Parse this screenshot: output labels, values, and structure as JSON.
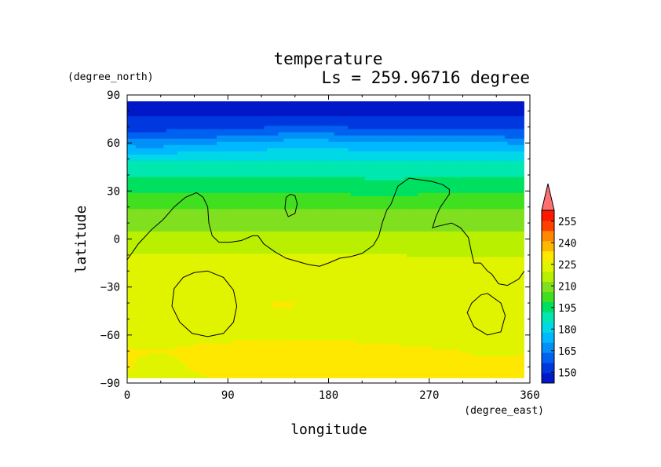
{
  "chart_data": {
    "type": "heatmap",
    "title": "temperature",
    "subtitle": "Ls = 259.96716 degree",
    "xlabel": "longitude",
    "ylabel": "latitude",
    "x_units": "(degree_east)",
    "y_units": "(degree_north)",
    "xlim": [
      0,
      360
    ],
    "ylim": [
      -90,
      90
    ],
    "x_ticks": [
      "0",
      "90",
      "180",
      "270",
      "360"
    ],
    "x_tick_values": [
      0,
      90,
      180,
      270,
      360
    ],
    "y_ticks": [
      "−90",
      "−60",
      "−30",
      "0",
      "30",
      "60",
      "90"
    ],
    "y_tick_values": [
      -90,
      -60,
      -30,
      0,
      30,
      60,
      90
    ],
    "data_lat_range": [
      -87,
      86
    ],
    "colorbar": {
      "levels": [
        142.5,
        150,
        157.5,
        165,
        172.5,
        180,
        187.5,
        195,
        202.5,
        210,
        217.5,
        225,
        232.5,
        240,
        247.5,
        255,
        262.5
      ],
      "colors": [
        "#0018c8",
        "#0038e0",
        "#0060f0",
        "#0090f8",
        "#00b8ff",
        "#00d8e8",
        "#00e8b0",
        "#00e060",
        "#40e020",
        "#80e020",
        "#b8f000",
        "#e0f400",
        "#ffe800",
        "#ffb800",
        "#ff8800",
        "#ff4000",
        "#ff1800"
      ],
      "tick_labels": [
        "150",
        "165",
        "180",
        "195",
        "210",
        "225",
        "240",
        "255"
      ],
      "tick_values": [
        150,
        165,
        180,
        195,
        210,
        225,
        240,
        255
      ],
      "overflow_color": "#ff7070"
    },
    "zonal_profile": {
      "lat": [
        -90,
        -80,
        -70,
        -60,
        -50,
        -40,
        -30,
        -20,
        -15,
        -10,
        -5,
        0,
        5,
        10,
        15,
        20,
        25,
        30,
        35,
        40,
        45,
        50,
        55,
        60,
        63,
        66,
        70,
        75,
        80,
        90
      ],
      "temperature": [
        232,
        234,
        234,
        229,
        228,
        229,
        229,
        228,
        226,
        225,
        222,
        220,
        217,
        216,
        213,
        209,
        206,
        202,
        198,
        194,
        190,
        187,
        181,
        172,
        166,
        160,
        155,
        151,
        148,
        146
      ]
    },
    "contours": [
      {
        "lon": [
          0,
          10,
          22,
          32,
          42,
          52,
          62,
          68,
          72,
          73,
          76,
          82,
          92,
          102,
          112,
          117,
          122,
          132,
          142,
          152,
          162,
          172,
          180,
          190,
          200,
          210,
          220,
          225,
          228,
          232,
          236,
          242,
          252,
          262,
          272,
          282,
          288,
          288,
          280,
          276,
          273,
          278,
          290,
          298,
          305,
          308,
          310,
          316,
          322,
          326,
          332,
          340,
          350,
          355
        ],
        "lat": [
          -13,
          -3,
          6,
          12,
          20,
          26,
          29,
          26,
          20,
          10,
          2,
          -2,
          -2,
          -1,
          2,
          2,
          -3,
          -8,
          -12,
          -14,
          -16,
          -17,
          -15,
          -12,
          -11,
          -9,
          -4,
          2,
          10,
          18,
          22,
          33,
          38,
          37,
          36,
          34,
          31,
          28,
          20,
          14,
          7,
          8,
          10,
          7,
          1,
          -9,
          -15,
          -15,
          -20,
          -22,
          -28,
          -29,
          -25,
          -20
        ]
      },
      {
        "lon": [
          142,
          146,
          150,
          152,
          150,
          144,
          141,
          142
        ],
        "lat": [
          26,
          28,
          27,
          22,
          16,
          14,
          19,
          26
        ]
      },
      {
        "lon": [
          72,
          86,
          95,
          98,
          95,
          86,
          72,
          58,
          47,
          40,
          42,
          50,
          60,
          72
        ],
        "lat": [
          -20,
          -24,
          -32,
          -42,
          -52,
          -59,
          -61,
          -59,
          -52,
          -42,
          -31,
          -24,
          -21,
          -20
        ]
      },
      {
        "lon": [
          322,
          334,
          338,
          334,
          322,
          310,
          304,
          308,
          316,
          322
        ],
        "lat": [
          -34,
          -40,
          -48,
          -58,
          -60,
          -55,
          -46,
          -40,
          -35,
          -34
        ]
      }
    ]
  }
}
